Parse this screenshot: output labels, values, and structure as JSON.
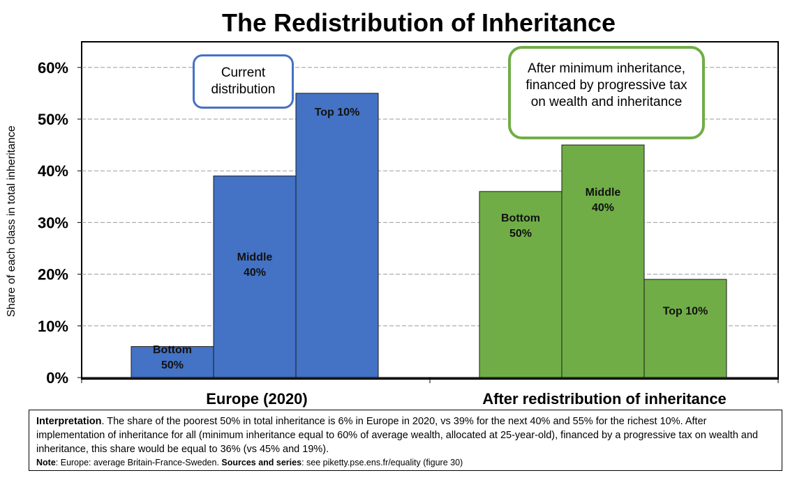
{
  "chart_data": {
    "type": "bar",
    "title": "The Redistribution of Inheritance",
    "ylabel": "Share of each class in total inheritance",
    "xlabel": "",
    "ylim": [
      0,
      65
    ],
    "yticks": [
      "0%",
      "10%",
      "20%",
      "30%",
      "40%",
      "50%",
      "60%"
    ],
    "grid": true,
    "groups": [
      {
        "label": "Europe (2020)",
        "color": "#4472c4",
        "bars": [
          {
            "label_lines": [
              "Bottom",
              "50%"
            ],
            "value": 6
          },
          {
            "label_lines": [
              "Middle",
              "40%"
            ],
            "value": 39
          },
          {
            "label_lines": [
              "Top 10%"
            ],
            "value": 55
          }
        ]
      },
      {
        "label": "After redistribution of inheritance",
        "color": "#70ad47",
        "bars": [
          {
            "label_lines": [
              "Bottom",
              "50%"
            ],
            "value": 36
          },
          {
            "label_lines": [
              "Middle",
              "40%"
            ],
            "value": 45
          },
          {
            "label_lines": [
              "Top 10%"
            ],
            "value": 19
          }
        ]
      }
    ],
    "annotations": {
      "current": "Current distribution",
      "after": "After minimum inheritance, financed by progressive tax on wealth and inheritance"
    }
  },
  "interpretation": {
    "label": "Interpretation",
    "text": ". The share of the poorest 50% in total inheritance is 6% in Europe in 2020, vs 39% for the next 40% and 55% for the richest 10%. After implementation of inheritance for all (minimum inheritance equal to 60% of average wealth, allocated at 25-year-old), financed by a progressive tax on wealth and inheritance, this share would be equal to 36% (vs 45% and 19%).",
    "note_label": "Note",
    "note_text": ": Europe: average Britain-France-Sweden. ",
    "sources_label": "Sources and series",
    "sources_text": ": see piketty.pse.ens.fr/equality (figure 30)"
  }
}
